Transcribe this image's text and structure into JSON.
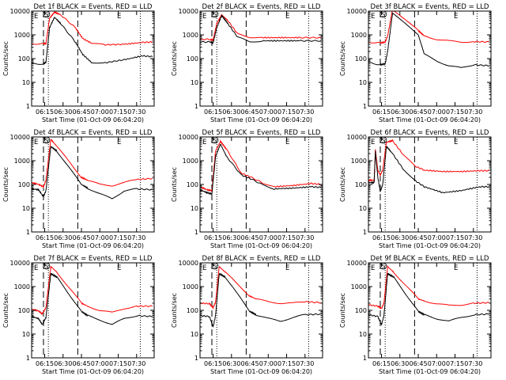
{
  "figure": {
    "xlabel": "Start Time (01-Oct-09 06:04:20)",
    "ylabel": "Counts/sec",
    "x_ticks": [
      "06:15",
      "06:30",
      "06:45",
      "07:00",
      "07:15",
      "07:30"
    ],
    "y_ticks": [
      "1",
      "10",
      "100",
      "1000",
      "10000"
    ],
    "markers": {
      "left": "E",
      "right": "E",
      "circle": "S"
    },
    "colors": {
      "events": "#000000",
      "lld": "#ff0000",
      "frame": "#000000"
    }
  },
  "chart_data": [
    {
      "type": "line",
      "title": "Det 1f BLACK = Events, RED = LLD",
      "x": [
        "06:04:20",
        "06:14:00",
        "06:16:00",
        "06:19:00",
        "06:23:00",
        "06:28:00",
        "06:40:00",
        "06:46:00",
        "06:53:00",
        "07:03:00",
        "07:20:00",
        "07:35:00",
        "07:43:00"
      ],
      "series": [
        {
          "name": "Events",
          "values": [
            60,
            60,
            70,
            2000,
            5500,
            3000,
            500,
            150,
            70,
            65,
            90,
            130,
            120
          ]
        },
        {
          "name": "LLD",
          "values": [
            420,
            420,
            430,
            5000,
            9000,
            7000,
            2000,
            700,
            450,
            380,
            400,
            480,
            500
          ]
        }
      ],
      "ylim": [
        1,
        10000
      ],
      "yscale": "log"
    },
    {
      "type": "line",
      "title": "Det 2f BLACK = Events, RED = LLD",
      "x": [
        "06:04:20",
        "06:13:00",
        "06:15:00",
        "06:18:00",
        "06:22:00",
        "06:27:00",
        "06:35:00",
        "06:45:00",
        "06:55:00",
        "07:10:00",
        "07:25:00",
        "07:43:00"
      ],
      "series": [
        {
          "name": "Events",
          "values": [
            500,
            500,
            450,
            2000,
            6500,
            3000,
            800,
            500,
            560,
            560,
            560,
            560
          ]
        },
        {
          "name": "LLD",
          "values": [
            650,
            650,
            600,
            3000,
            7000,
            4000,
            1100,
            800,
            760,
            760,
            760,
            760
          ]
        }
      ],
      "ylim": [
        1,
        10000
      ],
      "yscale": "log"
    },
    {
      "type": "line",
      "title": "Det 3f BLACK = Events, RED = LLD",
      "x": [
        "06:04:20",
        "06:14:00",
        "06:18:00",
        "06:20:00",
        "06:24:00",
        "06:45:00",
        "06:50:00",
        "07:00:00",
        "07:10:00",
        "07:20:00",
        "07:30:00",
        "07:43:00"
      ],
      "series": [
        {
          "name": "Events",
          "values": [
            70,
            55,
            60,
            200,
            8000,
            1000,
            150,
            80,
            50,
            40,
            55,
            50
          ]
        },
        {
          "name": "LLD",
          "values": [
            500,
            450,
            500,
            900,
            12000,
            1500,
            900,
            650,
            550,
            500,
            520,
            500
          ]
        }
      ],
      "ylim": [
        1,
        10000
      ],
      "yscale": "log"
    },
    {
      "type": "line",
      "title": "Det 4f BLACK = Events, RED = LLD",
      "x": [
        "06:04:20",
        "06:10:00",
        "06:14:00",
        "06:16:00",
        "06:20:00",
        "06:25:00",
        "06:45:00",
        "06:50:00",
        "07:00:00",
        "07:10:00",
        "07:20:00",
        "07:30:00",
        "07:43:00"
      ],
      "series": [
        {
          "name": "Events",
          "values": [
            65,
            60,
            30,
            55,
            4000,
            2500,
            100,
            70,
            40,
            25,
            55,
            65,
            60
          ]
        },
        {
          "name": "LLD",
          "values": [
            120,
            100,
            80,
            150,
            8000,
            4000,
            200,
            150,
            100,
            90,
            120,
            160,
            180
          ]
        }
      ],
      "ylim": [
        1,
        10000
      ],
      "yscale": "log"
    },
    {
      "type": "line",
      "title": "Det 5f BLACK = Events, RED = LLD",
      "x": [
        "06:04:20",
        "06:10:00",
        "06:14:00",
        "06:17:00",
        "06:21:00",
        "06:26:00",
        "06:38:00",
        "06:46:00",
        "06:55:00",
        "07:05:00",
        "07:20:00",
        "07:35:00",
        "07:43:00"
      ],
      "series": [
        {
          "name": "Events",
          "values": [
            60,
            45,
            40,
            1500,
            5000,
            1500,
            250,
            170,
            100,
            65,
            70,
            80,
            75
          ]
        },
        {
          "name": "LLD",
          "values": [
            80,
            60,
            55,
            2500,
            6500,
            3000,
            300,
            200,
            120,
            80,
            90,
            110,
            100
          ]
        }
      ],
      "ylim": [
        1,
        10000
      ],
      "yscale": "log"
    },
    {
      "type": "line",
      "title": "Det 6f BLACK = Events, RED = LLD",
      "x": [
        "06:04:20",
        "06:09:00",
        "06:10:00",
        "06:12:00",
        "06:14:00",
        "06:16:00",
        "06:19:00",
        "06:24:00",
        "06:32:00",
        "06:42:00",
        "06:50:00",
        "07:05:00",
        "07:20:00",
        "07:35:00",
        "07:43:00"
      ],
      "series": [
        {
          "name": "Events",
          "values": [
            120,
            120,
            2500,
            200,
            50,
            100,
            4000,
            2000,
            500,
            150,
            80,
            45,
            55,
            80,
            80
          ]
        },
        {
          "name": "LLD",
          "values": [
            150,
            150,
            3000,
            400,
            250,
            400,
            6000,
            7000,
            2000,
            600,
            400,
            350,
            350,
            380,
            380
          ]
        }
      ],
      "ylim": [
        1,
        10000
      ],
      "yscale": "log"
    },
    {
      "type": "line",
      "title": "Det 7f BLACK = Events, RED = LLD",
      "x": [
        "06:04:20",
        "06:10:00",
        "06:13:00",
        "06:16:00",
        "06:20:00",
        "06:25:00",
        "06:45:00",
        "06:50:00",
        "07:00:00",
        "07:10:00",
        "07:20:00",
        "07:30:00",
        "07:43:00"
      ],
      "series": [
        {
          "name": "Events",
          "values": [
            55,
            45,
            25,
            50,
            3500,
            2500,
            90,
            60,
            40,
            25,
            45,
            60,
            55
          ]
        },
        {
          "name": "LLD",
          "values": [
            110,
            95,
            70,
            130,
            7000,
            4000,
            200,
            150,
            100,
            80,
            120,
            150,
            150
          ]
        }
      ],
      "ylim": [
        1,
        10000
      ],
      "yscale": "log"
    },
    {
      "type": "line",
      "title": "Det 8f BLACK = Events, RED = LLD",
      "x": [
        "06:04:20",
        "06:12:00",
        "06:15:00",
        "06:17:00",
        "06:20:00",
        "06:25:00",
        "06:45:00",
        "06:50:00",
        "07:00:00",
        "07:10:00",
        "07:20:00",
        "07:30:00",
        "07:43:00"
      ],
      "series": [
        {
          "name": "Events",
          "values": [
            60,
            55,
            20,
            60,
            3500,
            2500,
            90,
            65,
            45,
            35,
            50,
            65,
            70
          ]
        },
        {
          "name": "LLD",
          "values": [
            200,
            190,
            130,
            220,
            7000,
            4000,
            400,
            300,
            230,
            200,
            200,
            230,
            210
          ]
        }
      ],
      "ylim": [
        1,
        10000
      ],
      "yscale": "log"
    },
    {
      "type": "line",
      "title": "Det 9f BLACK = Events, RED = LLD",
      "x": [
        "06:04:20",
        "06:12:00",
        "06:15:00",
        "06:17:00",
        "06:20:00",
        "06:25:00",
        "06:45:00",
        "06:50:00",
        "07:00:00",
        "07:10:00",
        "07:20:00",
        "07:30:00",
        "07:43:00"
      ],
      "series": [
        {
          "name": "Events",
          "values": [
            65,
            55,
            25,
            60,
            3500,
            2500,
            90,
            65,
            45,
            35,
            50,
            65,
            70
          ]
        },
        {
          "name": "LLD",
          "values": [
            170,
            150,
            120,
            200,
            7000,
            4000,
            300,
            250,
            190,
            160,
            170,
            200,
            210
          ]
        }
      ],
      "ylim": [
        1,
        10000
      ],
      "yscale": "log"
    }
  ]
}
